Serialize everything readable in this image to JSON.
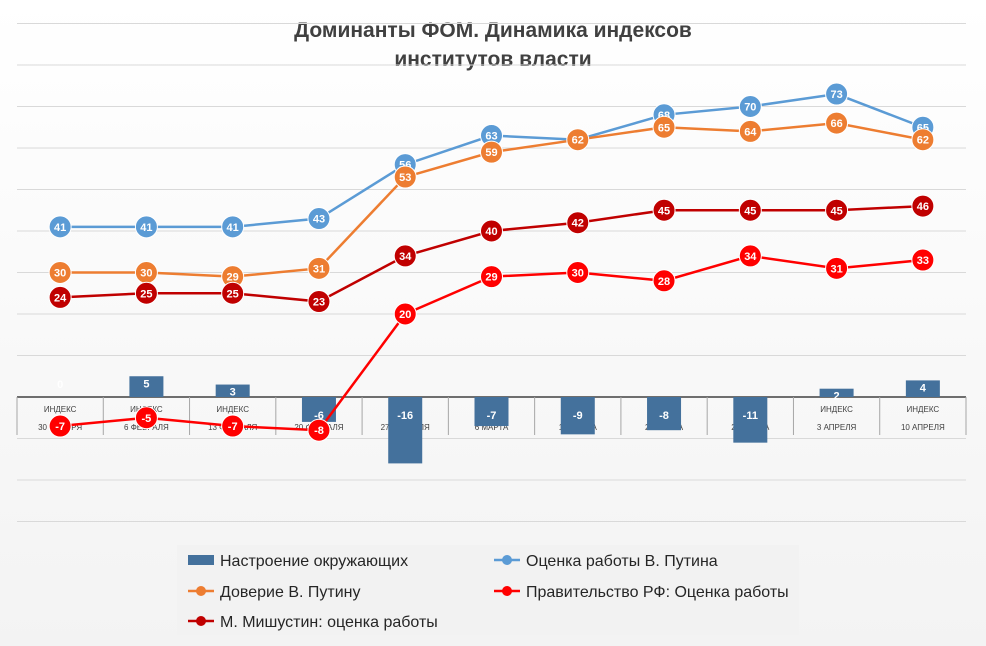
{
  "chart_data": {
    "type": "line",
    "title_lines": [
      "Доминанты ФОМ. Динамика индексов",
      "институтов власти"
    ],
    "categories": [
      [
        "ИНДЕКС",
        "30 ЯНВАРЯ"
      ],
      [
        "ИНДЕКС",
        "6 ФЕВРАЛЯ"
      ],
      [
        "ИНДЕКС",
        "13 ФЕВРАЛЯ"
      ],
      [
        "ИНДЕКС",
        "20 ФЕВРАЛЯ"
      ],
      [
        "ИНДЕКС",
        "27 ФЕВРАЛЯ"
      ],
      [
        "ИНДЕКС",
        "6 МАРТА"
      ],
      [
        "ИНДЕКС",
        "13 МАРТА"
      ],
      [
        "ИНДЕКС",
        "20 МАРТА"
      ],
      [
        "ИНДЕКС",
        "27 МАРТА"
      ],
      [
        "ИНДЕКС",
        "3 АПРЕЛЯ"
      ],
      [
        "ИНДЕКС",
        "10 АПРЕЛЯ"
      ]
    ],
    "ylim": [
      -30,
      90
    ],
    "grid": true,
    "legend_position": "bottom",
    "series": [
      {
        "name": "Настроение окружающих",
        "kind": "bar",
        "color": "#44719c",
        "values": [
          0,
          5,
          3,
          -6,
          -16,
          -7,
          -9,
          -8,
          -11,
          2,
          4
        ]
      },
      {
        "name": "Оценка работы В. Путина",
        "kind": "line",
        "color": "#5b9bd5",
        "values": [
          41,
          41,
          41,
          43,
          56,
          63,
          62,
          68,
          70,
          73,
          65
        ],
        "labels": [
          "41",
          "41",
          "41",
          "43",
          "56",
          "63",
          "",
          "68",
          "70",
          "73",
          "65"
        ]
      },
      {
        "name": "Доверие В. Путину",
        "kind": "line",
        "color": "#ed7d31",
        "values": [
          30,
          30,
          29,
          31,
          53,
          59,
          62,
          65,
          64,
          66,
          62
        ]
      },
      {
        "name": "Правительство РФ: Оценка работы",
        "kind": "line",
        "color": "#ff0000",
        "values": [
          -7,
          -5,
          -7,
          -8,
          20,
          29,
          30,
          28,
          34,
          31,
          33
        ]
      },
      {
        "name": "М. Мишустин: оценка работы",
        "kind": "line",
        "color": "#c00000",
        "values": [
          24,
          25,
          25,
          23,
          34,
          40,
          42,
          45,
          45,
          45,
          46
        ]
      }
    ]
  }
}
